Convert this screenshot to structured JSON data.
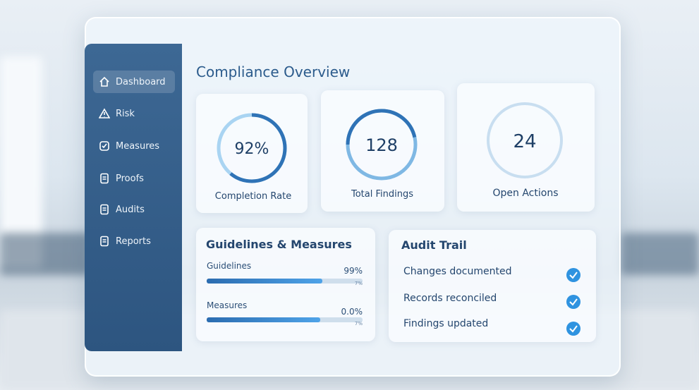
{
  "sidebar": {
    "items": [
      "Dashboard",
      "Risk",
      "Measures",
      "Proofs",
      "Audits",
      "Reports"
    ]
  },
  "main": {
    "title": "Compliance Overview",
    "stats": [
      {
        "value": "92%",
        "label": "Completion Rate"
      },
      {
        "value": "128",
        "label": "Total Findings"
      },
      {
        "value": "24",
        "label": "Open Actions"
      }
    ],
    "guidelines": {
      "title": "Guidelines & Measures",
      "rows": [
        {
          "label": "Guidelines",
          "value": "99%",
          "sub": "7%"
        },
        {
          "label": "Measures",
          "value": "0.0%",
          "sub": "7%"
        }
      ]
    },
    "audit_trail": {
      "title": "Audit Trail",
      "items": [
        "Changes documented",
        "Records reconciled",
        "Findings updated"
      ]
    }
  }
}
